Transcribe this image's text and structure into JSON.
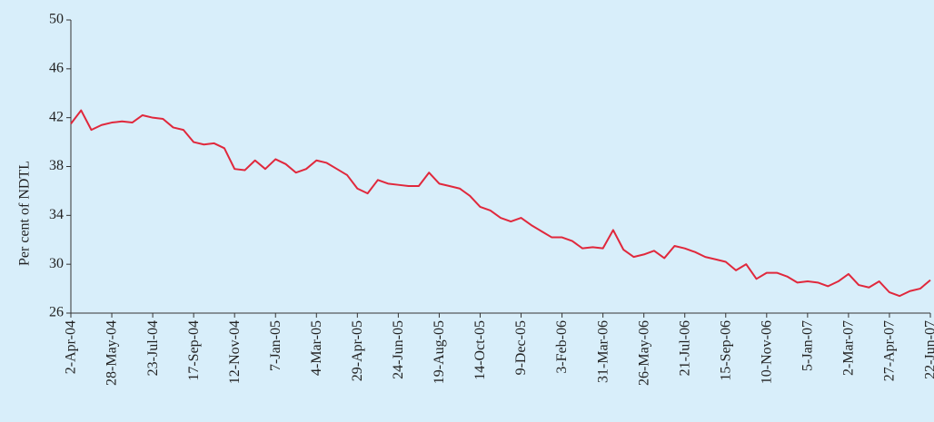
{
  "chart_data": {
    "type": "line",
    "y_label": "Per cent of NDTL",
    "categories": [
      "2-Apr-04",
      null,
      null,
      null,
      "28-May-04",
      null,
      null,
      null,
      "23-Jul-04",
      null,
      null,
      null,
      "17-Sep-04",
      null,
      null,
      null,
      "12-Nov-04",
      null,
      null,
      null,
      "7-Jan-05",
      null,
      null,
      null,
      "4-Mar-05",
      null,
      null,
      null,
      "29-Apr-05",
      null,
      null,
      null,
      "24-Jun-05",
      null,
      null,
      null,
      "19-Aug-05",
      null,
      null,
      null,
      "14-Oct-05",
      null,
      null,
      null,
      "9-Dec-05",
      null,
      null,
      null,
      "3-Feb-06",
      null,
      null,
      null,
      "31-Mar-06",
      null,
      null,
      null,
      "26-May-06",
      null,
      null,
      null,
      "21-Jul-06",
      null,
      null,
      null,
      "15-Sep-06",
      null,
      null,
      null,
      "10-Nov-06",
      null,
      null,
      null,
      "5-Jan-07",
      null,
      null,
      null,
      "2-Mar-07",
      null,
      null,
      null,
      "27-Apr-07",
      null,
      null,
      null,
      "22-Jun-07"
    ],
    "series": [
      {
        "color": "#e0283c",
        "values": [
          41.5,
          42.6,
          41.0,
          41.4,
          41.6,
          41.7,
          41.6,
          42.2,
          42.0,
          41.9,
          41.2,
          41.0,
          40.0,
          39.8,
          39.9,
          39.5,
          37.8,
          37.7,
          38.5,
          37.8,
          38.6,
          38.2,
          37.5,
          37.8,
          38.5,
          38.3,
          37.8,
          37.3,
          36.2,
          35.8,
          36.9,
          36.6,
          36.5,
          36.4,
          36.4,
          37.5,
          36.6,
          36.4,
          36.2,
          35.6,
          34.7,
          34.4,
          33.8,
          33.5,
          33.8,
          33.2,
          32.7,
          32.2,
          32.2,
          31.9,
          31.3,
          31.4,
          31.3,
          32.8,
          31.2,
          30.6,
          30.8,
          31.1,
          30.5,
          31.5,
          31.3,
          31.0,
          30.6,
          30.4,
          30.2,
          29.5,
          30.0,
          28.8,
          29.3,
          29.3,
          29.0,
          28.5,
          28.6,
          28.5,
          28.2,
          28.6,
          29.2,
          28.3,
          28.1,
          28.6,
          27.7,
          27.4,
          27.8,
          28.0,
          28.7
        ]
      }
    ],
    "ylim": [
      26,
      50
    ],
    "yticks": [
      26,
      30,
      34,
      38,
      42,
      46,
      50
    ],
    "grid": false
  }
}
